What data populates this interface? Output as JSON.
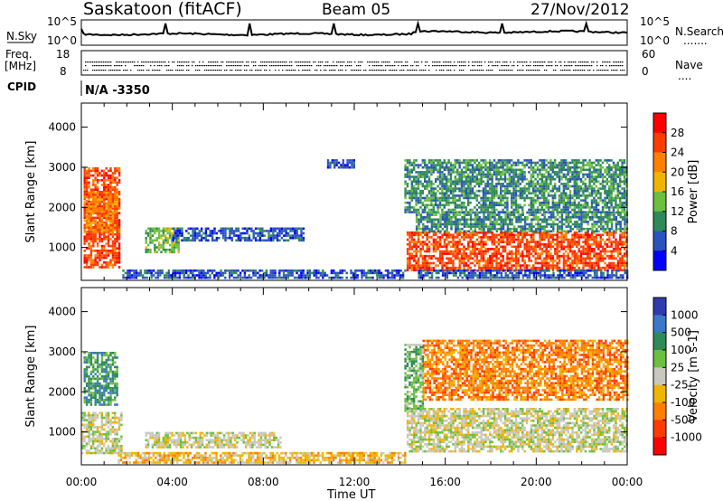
{
  "header": {
    "station": "Saskatoon (fitACF)",
    "beam": "Beam 05",
    "date": "27/Nov/2012"
  },
  "noise_panel": {
    "left_label": "N.Sky",
    "right_label": "N.Search",
    "left_ticks": [
      "10^5",
      "10^0"
    ],
    "right_ticks": [
      "10^5",
      "10^0"
    ],
    "right_marker": "......."
  },
  "freq_panel": {
    "left_label_line1": "Freq.",
    "left_label_line2": "[MHz]",
    "right_label": "Nave",
    "left_ticks": [
      "18",
      "8"
    ],
    "right_ticks": [
      "60",
      "0"
    ],
    "right_marker": "...."
  },
  "cpid_panel": {
    "label": "CPID",
    "value": "N/A -3350"
  },
  "x_axis": {
    "title": "Time UT",
    "ticks": [
      "00:00",
      "04:00",
      "08:00",
      "12:00",
      "16:00",
      "20:00",
      "00:00"
    ]
  },
  "colors": {
    "power_scale": [
      "#0000ff",
      "#2a52be",
      "#2e8b57",
      "#6cbf3f",
      "#f0b400",
      "#ff7f00",
      "#ff3b00",
      "#ff0000"
    ],
    "velocity_scale": [
      "#2d3bb0",
      "#3c78c8",
      "#2e8b57",
      "#6cbf3f",
      "#c8c8c0",
      "#f0b400",
      "#ff7f00",
      "#ff3b00",
      "#ff0000"
    ]
  },
  "chart_data": [
    {
      "type": "line",
      "name": "noise",
      "x_range_hours": [
        0,
        24
      ],
      "ticks_left": [
        "10^5",
        "10^0"
      ]
    },
    {
      "type": "heatmap",
      "name": "power",
      "ylabel": "Slant Range [km]",
      "xlabel": "",
      "y_ticks": [
        1000,
        2000,
        3000,
        4000
      ],
      "ylim": [
        180,
        4600
      ],
      "colorbar": {
        "label": "Power [dB]",
        "ticks": [
          "4",
          "8",
          "12",
          "16",
          "20",
          "24",
          "28"
        ]
      },
      "regions": [
        {
          "t0": 0.1,
          "t1": 1.7,
          "r0": 500,
          "r1": 3000,
          "level": 6
        },
        {
          "t0": 0.1,
          "t1": 1.6,
          "r0": 1400,
          "r1": 2400,
          "level": 5
        },
        {
          "t0": 2.8,
          "t1": 4.3,
          "r0": 900,
          "r1": 1500,
          "level": 3
        },
        {
          "t0": 4.0,
          "t1": 9.8,
          "r0": 1200,
          "r1": 1500,
          "level": 1
        },
        {
          "t0": 1.8,
          "t1": 14.2,
          "r0": 220,
          "r1": 450,
          "level": 1
        },
        {
          "t0": 10.8,
          "t1": 12.0,
          "r0": 3000,
          "r1": 3200,
          "level": 1
        },
        {
          "t0": 14.3,
          "t1": 24.0,
          "r0": 450,
          "r1": 1400,
          "level": 6
        },
        {
          "t0": 14.7,
          "t1": 24.0,
          "r0": 1400,
          "r1": 1900,
          "level": 2
        },
        {
          "t0": 14.2,
          "t1": 24.0,
          "r0": 1900,
          "r1": 3200,
          "level": 2
        },
        {
          "t0": 14.8,
          "t1": 24.0,
          "r0": 220,
          "r1": 450,
          "level": 1
        }
      ]
    },
    {
      "type": "heatmap",
      "name": "velocity",
      "ylabel": "Slant Range [km]",
      "xlabel": "Time UT",
      "y_ticks": [
        1000,
        2000,
        3000,
        4000
      ],
      "ylim": [
        180,
        4600
      ],
      "colorbar": {
        "label": "Velocity [m s-1]",
        "ticks": [
          "1000",
          "500",
          "100",
          "25",
          "-25",
          "-100",
          "-500",
          "-1000"
        ]
      },
      "regions": [
        {
          "t0": 0.1,
          "t1": 1.6,
          "r0": 1700,
          "r1": 3000,
          "level": 2
        },
        {
          "t0": 0.0,
          "t1": 1.8,
          "r0": 500,
          "r1": 1500,
          "level": 4
        },
        {
          "t0": 2.8,
          "t1": 8.8,
          "r0": 600,
          "r1": 1000,
          "level": 4
        },
        {
          "t0": 1.6,
          "t1": 14.2,
          "r0": 220,
          "r1": 500,
          "level": 5
        },
        {
          "t0": 14.3,
          "t1": 24.0,
          "r0": 500,
          "r1": 1600,
          "level": 4
        },
        {
          "t0": 15.0,
          "t1": 24.0,
          "r0": 1800,
          "r1": 3300,
          "level": 6
        },
        {
          "t0": 14.2,
          "t1": 15.0,
          "r0": 1500,
          "r1": 3200,
          "level": 3
        }
      ]
    }
  ]
}
